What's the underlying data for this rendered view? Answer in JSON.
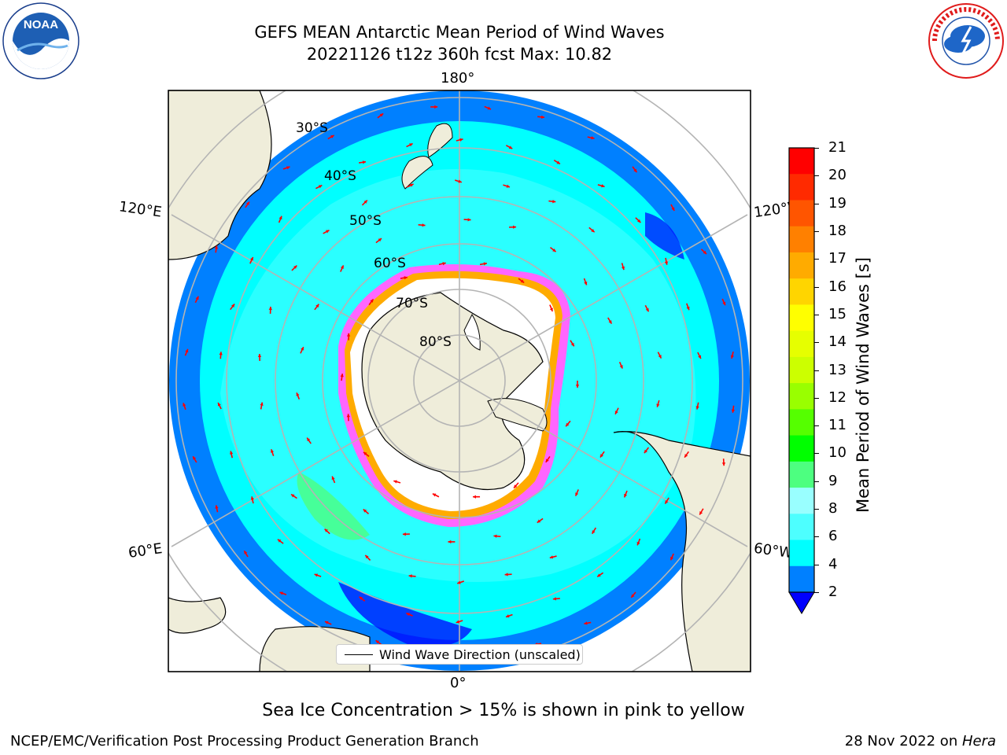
{
  "header": {
    "title_line1": "GEFS MEAN Antarctic Mean Period of Wind Waves",
    "title_line2": "20221126 t12z 360h fcst   Max: 10.82"
  },
  "logos": {
    "left": "NOAA",
    "left_ring_text": "NATIONAL OCEANIC AND ATMOSPHERIC ADMINISTRATION · U.S. DEPARTMENT OF COMMERCE",
    "right_ring_text": "NATIONAL WEATHER SERVICE"
  },
  "map": {
    "lon_labels": {
      "top": "180°",
      "bottom": "0°",
      "left_upper": "120°E",
      "left_lower": "60°E",
      "right_upper": "120°W",
      "right_lower": "60°W"
    },
    "lat_labels": [
      "30°S",
      "40°S",
      "50°S",
      "60°S",
      "70°S",
      "80°S"
    ],
    "colors": {
      "land": "#efedda",
      "ice": "#ffffff",
      "arrows": "#ff0000",
      "grid": "#b4b4b4"
    },
    "legend_label": "Wind Wave Direction (unscaled)"
  },
  "colorbar": {
    "label": "Mean Period of Wind Waves [s]",
    "ticks": [
      "21",
      "20",
      "19",
      "18",
      "17",
      "16",
      "15",
      "14",
      "13",
      "12",
      "11",
      "10",
      "9",
      "8",
      "6",
      "4",
      "2"
    ],
    "colors": [
      "#ff0000",
      "#ff2a00",
      "#ff5500",
      "#ff8000",
      "#ffab00",
      "#ffd500",
      "#ffff00",
      "#e6ff00",
      "#ccff00",
      "#99ff00",
      "#55ff00",
      "#00ff00",
      "#4dff80",
      "#99ffff",
      "#4dffff",
      "#00ffff",
      "#0080ff"
    ],
    "extend_color": "#0000ff"
  },
  "caption": "Sea Ice Concentration > 15% is shown in pink to yellow",
  "footer": {
    "left": "NCEP/EMC/Verification Post Processing Product Generation Branch",
    "right_prefix": "28 Nov 2022 on ",
    "right_host": "Hera"
  }
}
